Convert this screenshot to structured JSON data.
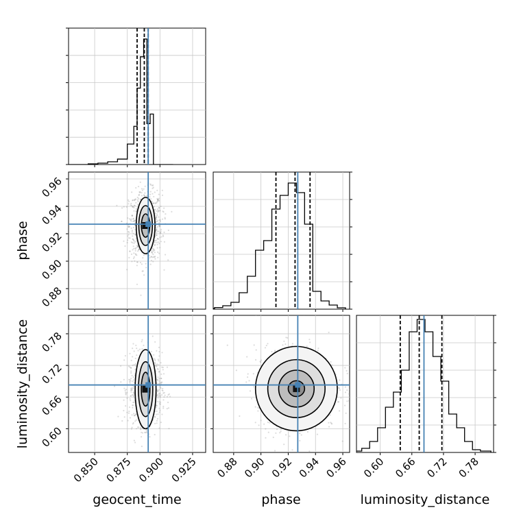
{
  "chart_data": {
    "type": "corner",
    "parameters": [
      "geocent_time",
      "phase",
      "luminosity_distance"
    ],
    "axis_labels": {
      "geocent_time": "geocent_time",
      "phase": "phase",
      "luminosity_distance": "luminosity_distance"
    },
    "ranges": {
      "geocent_time": [
        0.83,
        0.935
      ],
      "phase": [
        0.865,
        0.965
      ],
      "luminosity_distance": [
        0.555,
        0.815
      ]
    },
    "ticks": {
      "geocent_time": [
        0.85,
        0.875,
        0.9,
        0.925
      ],
      "phase": [
        0.88,
        0.9,
        0.92,
        0.94,
        0.96
      ],
      "luminosity_distance": [
        0.6,
        0.66,
        0.72,
        0.78
      ]
    },
    "tick_labels": {
      "geocent_time": [
        "0.850",
        "0.875",
        "0.900",
        "0.925"
      ],
      "phase": [
        "0.88",
        "0.90",
        "0.92",
        "0.94",
        "0.96"
      ],
      "luminosity_distance": [
        "0.60",
        "0.66",
        "0.72",
        "0.78"
      ]
    },
    "truths": {
      "geocent_time": 0.891,
      "phase": 0.927,
      "luminosity_distance": 0.683
    },
    "quantiles": {
      "geocent_time": [
        0.8825,
        0.888,
        0.891
      ],
      "phase": [
        0.911,
        0.925,
        0.936
      ],
      "luminosity_distance": [
        0.638,
        0.674,
        0.717
      ]
    },
    "marginals": {
      "geocent_time": {
        "edges": [
          0.83,
          0.8375,
          0.845,
          0.8525,
          0.86,
          0.8675,
          0.875,
          0.88,
          0.8825,
          0.885,
          0.8875,
          0.89,
          0.8925,
          0.895,
          0.9,
          0.91
        ],
        "counts": [
          0.0,
          0.0,
          0.005,
          0.01,
          0.02,
          0.04,
          0.15,
          0.28,
          0.56,
          0.79,
          0.92,
          0.3,
          0.37,
          0.0,
          0.0
        ]
      },
      "phase": {
        "edges": [
          0.86,
          0.866,
          0.872,
          0.878,
          0.884,
          0.89,
          0.896,
          0.902,
          0.908,
          0.914,
          0.92,
          0.926,
          0.932,
          0.938,
          0.944,
          0.95,
          0.956,
          0.962
        ],
        "counts": [
          0.005,
          0.012,
          0.025,
          0.05,
          0.12,
          0.24,
          0.43,
          0.5,
          0.73,
          0.83,
          0.92,
          0.85,
          0.62,
          0.13,
          0.06,
          0.03,
          0.01
        ]
      },
      "luminosity_distance": {
        "edges": [
          0.55,
          0.565,
          0.58,
          0.595,
          0.61,
          0.625,
          0.64,
          0.655,
          0.67,
          0.685,
          0.7,
          0.715,
          0.73,
          0.745,
          0.76,
          0.775,
          0.79,
          0.81
        ],
        "counts": [
          0.01,
          0.03,
          0.08,
          0.18,
          0.33,
          0.44,
          0.6,
          0.88,
          0.97,
          0.88,
          0.7,
          0.52,
          0.28,
          0.18,
          0.08,
          0.02,
          0.01
        ]
      }
    },
    "joint": [
      {
        "x": "geocent_time",
        "y": "phase",
        "center": [
          0.889,
          0.926
        ],
        "spread": [
          0.0055,
          0.011
        ],
        "contours": [
          [
            0.0032,
            0.0085
          ],
          [
            0.0052,
            0.0145
          ],
          [
            0.0072,
            0.0205
          ]
        ]
      },
      {
        "x": "geocent_time",
        "y": "luminosity_distance",
        "center": [
          0.889,
          0.675
        ],
        "spread": [
          0.0055,
          0.03
        ],
        "contours": [
          [
            0.0033,
            0.032
          ],
          [
            0.0055,
            0.052
          ],
          [
            0.008,
            0.075
          ]
        ]
      },
      {
        "x": "phase",
        "y": "luminosity_distance",
        "center": [
          0.926,
          0.676
        ],
        "spread": [
          0.013,
          0.034
        ],
        "contours": [
          [
            0.006,
            0.015
          ],
          [
            0.013,
            0.035
          ],
          [
            0.021,
            0.055
          ],
          [
            0.03,
            0.08
          ]
        ]
      }
    ],
    "grid": true,
    "truth_color": "#4682b4",
    "hist_color": "#000000",
    "point_color": "#9a9a9a"
  }
}
